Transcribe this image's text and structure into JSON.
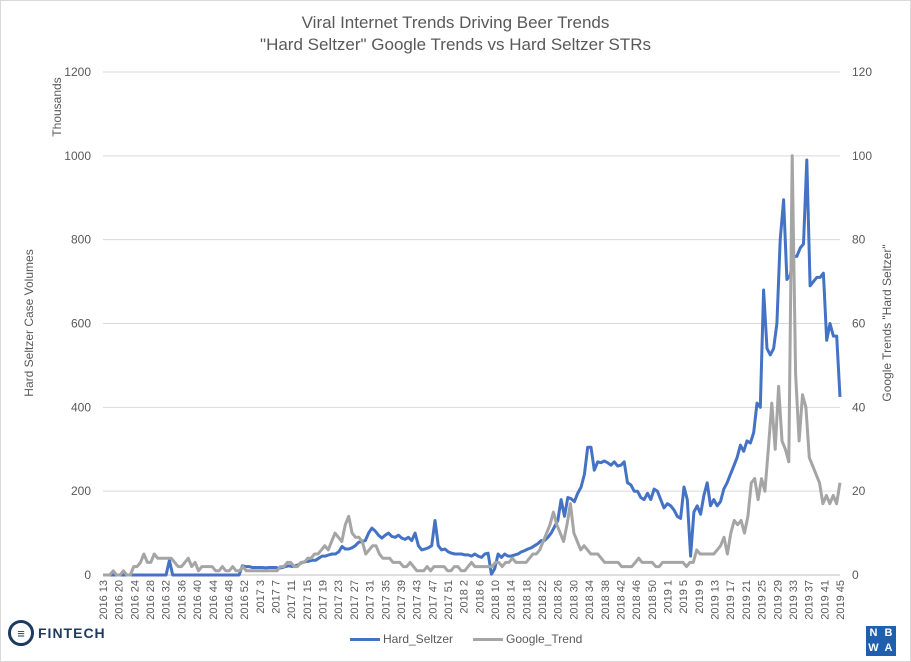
{
  "chart_data": {
    "type": "line",
    "title": "Viral Internet Trends Driving Beer Trends",
    "subtitle": "\"Hard Seltzer\" Google Trends vs Hard Seltzer STRs",
    "xlabel": "",
    "ylabel": "Hard Seltzer Case Volumes",
    "ylabel_units": "Thousands",
    "y2label": "Google Trends \"Hard Seltzer\"",
    "ylim": [
      0,
      1200
    ],
    "y2lim": [
      0,
      120
    ],
    "yticks": [
      0,
      200,
      400,
      600,
      800,
      1000,
      1200
    ],
    "y2ticks": [
      0,
      20,
      40,
      60,
      80,
      100,
      120
    ],
    "grid": true,
    "legend_position": "bottom",
    "x_tick_labels": [
      "2016 13",
      "2016 20",
      "2016 24",
      "2016 28",
      "2016 32",
      "2016 36",
      "2016 40",
      "2016 44",
      "2016 48",
      "2016 52",
      "2017 3",
      "2017 7",
      "2017 11",
      "2017 15",
      "2017 19",
      "2017 23",
      "2017 27",
      "2017 31",
      "2017 35",
      "2017 39",
      "2017 43",
      "2017 47",
      "2017 51",
      "2018 2",
      "2018 6",
      "2018 10",
      "2018 14",
      "2018 18",
      "2018 22",
      "2018 26",
      "2018 30",
      "2018 34",
      "2018 38",
      "2018 42",
      "2018 46",
      "2018 50",
      "2019 1",
      "2019 5",
      "2019 9",
      "2019 13",
      "2019 17",
      "2019 21",
      "2019 25",
      "2019 29",
      "2019 33",
      "2019 37",
      "2019 41",
      "2019 45"
    ],
    "series": [
      {
        "name": "Hard_Seltzer",
        "axis": "left",
        "color": "#4472c4",
        "values": [
          0,
          0,
          0,
          0,
          0,
          0,
          0,
          0,
          0,
          0,
          0,
          0,
          0,
          0,
          0,
          0,
          0,
          0,
          0,
          0,
          35,
          0,
          0,
          0,
          0,
          0,
          0,
          0,
          0,
          0,
          0,
          0,
          0,
          0,
          0,
          0,
          0,
          0,
          0,
          0,
          0,
          0,
          22,
          20,
          20,
          18,
          18,
          18,
          18,
          17,
          18,
          18,
          18,
          16,
          18,
          20,
          22,
          20,
          22,
          25,
          30,
          32,
          33,
          35,
          35,
          40,
          45,
          45,
          48,
          50,
          50,
          55,
          68,
          62,
          62,
          65,
          70,
          78,
          80,
          82,
          100,
          112,
          105,
          95,
          88,
          95,
          100,
          92,
          90,
          95,
          88,
          85,
          90,
          82,
          100,
          70,
          60,
          62,
          65,
          70,
          130,
          70,
          60,
          62,
          55,
          52,
          50,
          50,
          50,
          48,
          48,
          45,
          50,
          45,
          42,
          50,
          52,
          2,
          15,
          50,
          42,
          50,
          45,
          45,
          48,
          50,
          55,
          58,
          62,
          65,
          70,
          75,
          82,
          82,
          90,
          100,
          115,
          130,
          180,
          140,
          185,
          182,
          175,
          195,
          210,
          240,
          305,
          305,
          250,
          270,
          268,
          272,
          268,
          262,
          270,
          260,
          262,
          270,
          220,
          215,
          200,
          200,
          185,
          180,
          195,
          180,
          205,
          200,
          180,
          160,
          170,
          165,
          155,
          140,
          135,
          210,
          180,
          45,
          150,
          165,
          145,
          190,
          220,
          165,
          180,
          165,
          175,
          205,
          220,
          240,
          260,
          280,
          310,
          295,
          320,
          315,
          340,
          410,
          400,
          680,
          540,
          525,
          540,
          600,
          800,
          895,
          705,
          715,
          760,
          760,
          780,
          790,
          990,
          690,
          700,
          710,
          710,
          720,
          560,
          600,
          570,
          570,
          425
        ]
      },
      {
        "name": "Google_Trend",
        "axis": "right",
        "color": "#a5a5a5",
        "values": [
          0,
          0,
          0,
          1,
          0,
          0,
          1,
          0,
          0,
          2,
          2,
          3,
          5,
          3,
          3,
          5,
          4,
          4,
          4,
          4,
          4,
          3,
          2,
          2,
          3,
          4,
          2,
          3,
          1,
          2,
          2,
          2,
          2,
          1,
          1,
          2,
          1,
          1,
          2,
          1,
          1,
          2,
          1,
          1,
          1,
          1,
          1,
          1,
          1,
          1,
          1,
          1,
          2,
          2,
          3,
          3,
          2,
          2,
          3,
          3,
          4,
          4,
          5,
          5,
          6,
          7,
          6,
          8,
          10,
          9,
          8,
          12,
          14,
          10,
          9,
          9,
          8,
          5,
          6,
          7,
          7,
          5,
          4,
          4,
          4,
          3,
          3,
          3,
          2,
          2,
          3,
          2,
          1,
          1,
          1,
          2,
          1,
          2,
          2,
          2,
          2,
          1,
          1,
          2,
          2,
          1,
          1,
          2,
          3,
          2,
          2,
          2,
          2,
          2,
          2,
          3,
          3,
          2,
          3,
          3,
          4,
          3,
          3,
          3,
          3,
          4,
          5,
          5,
          6,
          8,
          10,
          12,
          15,
          12,
          10,
          8,
          12,
          17,
          10,
          8,
          6,
          7,
          6,
          5,
          5,
          5,
          4,
          3,
          3,
          3,
          3,
          3,
          2,
          2,
          2,
          2,
          3,
          4,
          3,
          3,
          3,
          3,
          2,
          2,
          3,
          3,
          3,
          3,
          3,
          3,
          3,
          2,
          3,
          3,
          6,
          5,
          5,
          5,
          5,
          5,
          6,
          7,
          9,
          5,
          10,
          13,
          12,
          13,
          10,
          14,
          22,
          23,
          18,
          23,
          20,
          30,
          41,
          30,
          45,
          32,
          30,
          27,
          100,
          48,
          32,
          43,
          40,
          28,
          26,
          24,
          22,
          17,
          19,
          17,
          19,
          17,
          22
        ]
      }
    ]
  },
  "header": {
    "title_line1": "Viral Internet Trends Driving Beer Trends",
    "title_line2": "\"Hard Seltzer\" Google Trends vs Hard Seltzer STRs"
  },
  "axes": {
    "left_title": "Hard Seltzer Case Volumes",
    "left_units": "Thousands",
    "right_title": "Google Trends \"Hard Seltzer\""
  },
  "legend": {
    "items": [
      {
        "label": "Hard_Seltzer",
        "color": "#4472c4"
      },
      {
        "label": "Google_Trend",
        "color": "#a5a5a5"
      }
    ]
  },
  "logos": {
    "left": "FINTECH",
    "right": [
      "N",
      "B",
      "W",
      "A"
    ]
  }
}
